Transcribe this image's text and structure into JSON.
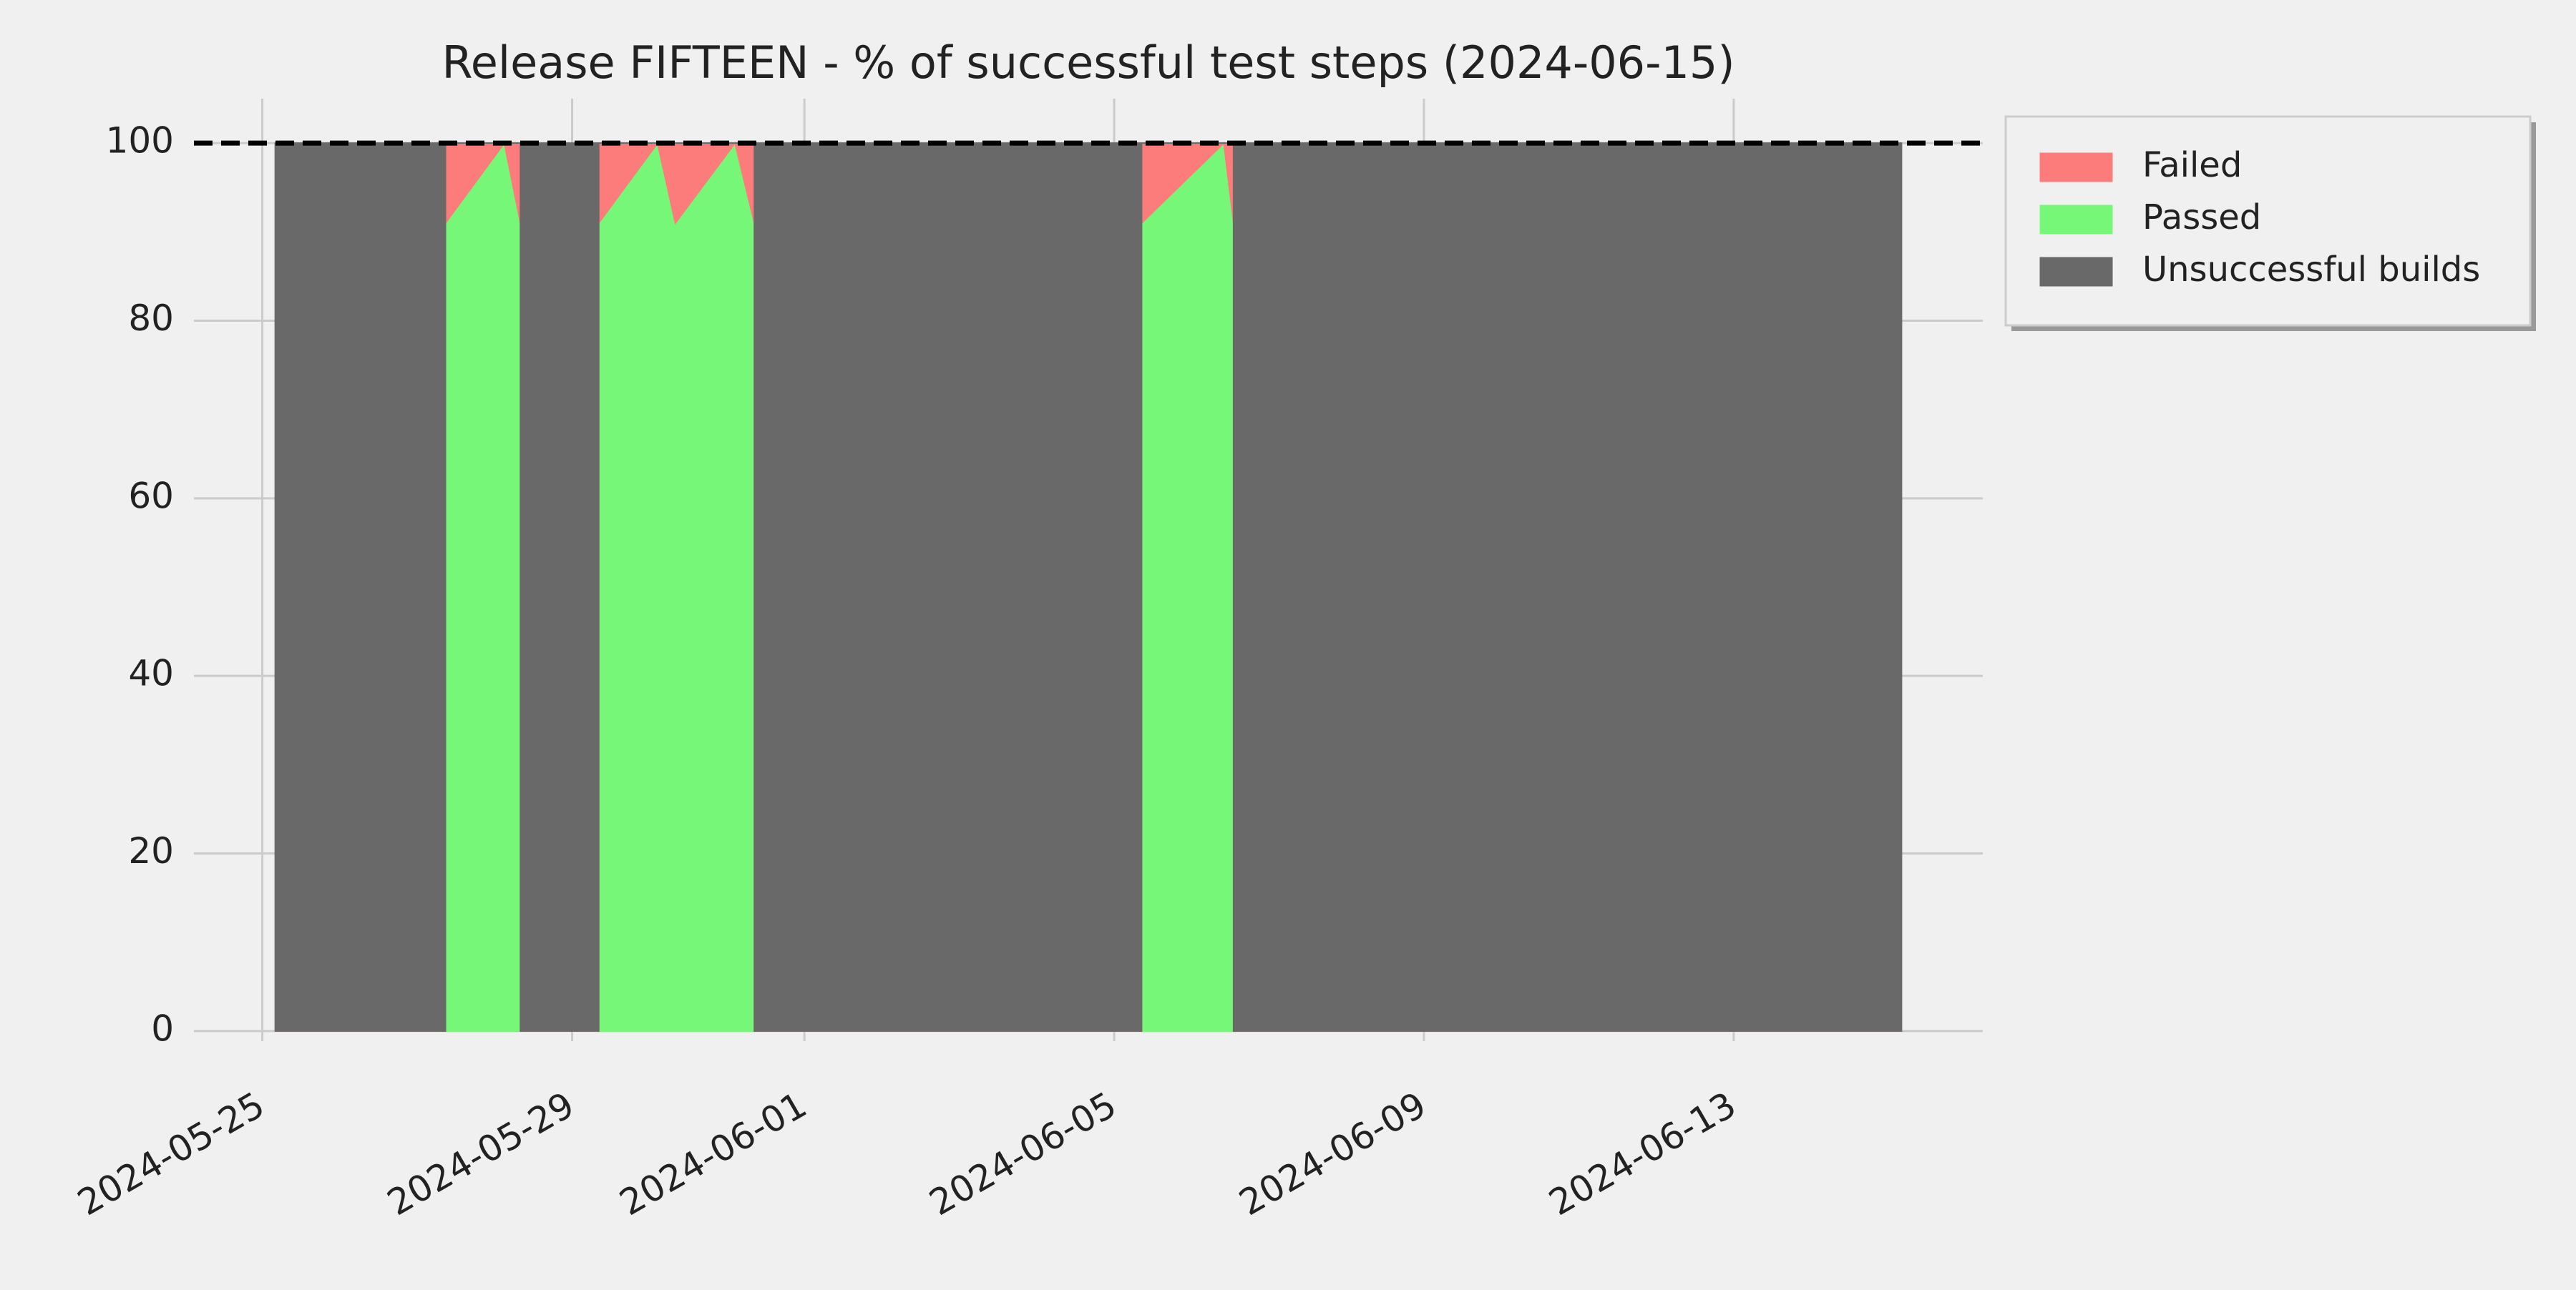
{
  "chart_data": {
    "type": "stacked_area",
    "title": "Release FIFTEEN - % of successful test steps (2024-06-15)",
    "x": [
      "2024-05-25T04:00",
      "2024-05-27T08:45",
      "2024-05-27T08:45",
      "2024-05-28T03:00",
      "2024-05-28T08:00",
      "2024-05-28T08:00",
      "2024-05-29T08:15",
      "2024-05-29T08:15",
      "2024-05-30T02:30",
      "2024-05-30T08:00",
      "2024-05-31T02:30",
      "2024-05-31T08:30",
      "2024-05-31T08:30",
      "2024-06-05T08:30",
      "2024-06-05T08:30",
      "2024-06-06T10:00",
      "2024-06-06T13:00",
      "2024-06-06T13:00",
      "2024-06-15T04:00"
    ],
    "series": [
      {
        "name": "Failed",
        "color": "#fc7b7b",
        "values": [
          0,
          0,
          9,
          0,
          9,
          0,
          0,
          9,
          0,
          9,
          0,
          9,
          0,
          0,
          9,
          0,
          9,
          0,
          0
        ]
      },
      {
        "name": "Passed",
        "color": "#77f777",
        "values": [
          0,
          0,
          91,
          100,
          91,
          0,
          0,
          91,
          100,
          91,
          100,
          91,
          0,
          0,
          91,
          100,
          91,
          0,
          0
        ]
      },
      {
        "name": "Unsuccessful builds",
        "color": "#696969",
        "values": [
          100,
          100,
          0,
          0,
          0,
          100,
          100,
          0,
          0,
          0,
          0,
          0,
          100,
          100,
          0,
          0,
          0,
          100,
          100
        ]
      }
    ],
    "hline": 100,
    "xlim": [
      "2024-05-24T02:48",
      "2024-06-16T05:12"
    ],
    "xticks": [
      "2024-05-25",
      "2024-05-29",
      "2024-06-01",
      "2024-06-05",
      "2024-06-09",
      "2024-06-13"
    ],
    "ylim": [
      -5,
      105
    ],
    "yticks": [
      0,
      20,
      40,
      60,
      80,
      100
    ],
    "grid": true,
    "legend": "outside-upper-right"
  }
}
